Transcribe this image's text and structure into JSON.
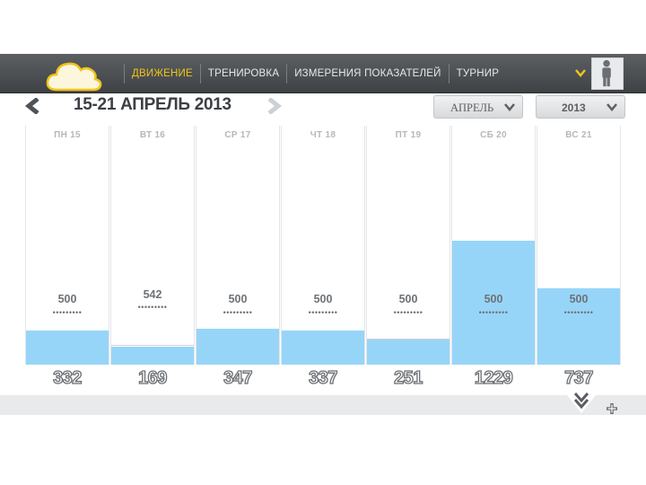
{
  "nav": {
    "items": [
      {
        "label": "ДВИЖЕНИЕ",
        "active": true
      },
      {
        "label": "ТРЕНИРОВКА",
        "active": false
      },
      {
        "label": "ИЗМЕРЕНИЯ ПОКАЗАТЕЛЕЙ",
        "active": false
      },
      {
        "label": "ТУРНИР",
        "active": false
      }
    ],
    "logo_icon": "cloud-icon",
    "user_icon": "user-icon",
    "check_icon": "chevron-down-icon"
  },
  "week": {
    "title": "15-21 АПРЕЛЬ 2013",
    "month": "АПРЕЛЬ",
    "year": "2013"
  },
  "days": [
    {
      "label": "ПН 15",
      "goal": "500",
      "total": "332"
    },
    {
      "label": "ВТ 16",
      "goal": "542",
      "total": "169"
    },
    {
      "label": "СР 17",
      "goal": "500",
      "total": "347"
    },
    {
      "label": "ЧТ 18",
      "goal": "500",
      "total": "337"
    },
    {
      "label": "ПТ 19",
      "goal": "500",
      "total": "251"
    },
    {
      "label": "СБ 20",
      "goal": "500",
      "total": "1229"
    },
    {
      "label": "ВС 21",
      "goal": "500",
      "total": "737"
    }
  ],
  "dots": "•••••••••",
  "colors": {
    "accent": "#f0c419",
    "fill": "#97d5f8",
    "topbar": "#4a4e51"
  }
}
